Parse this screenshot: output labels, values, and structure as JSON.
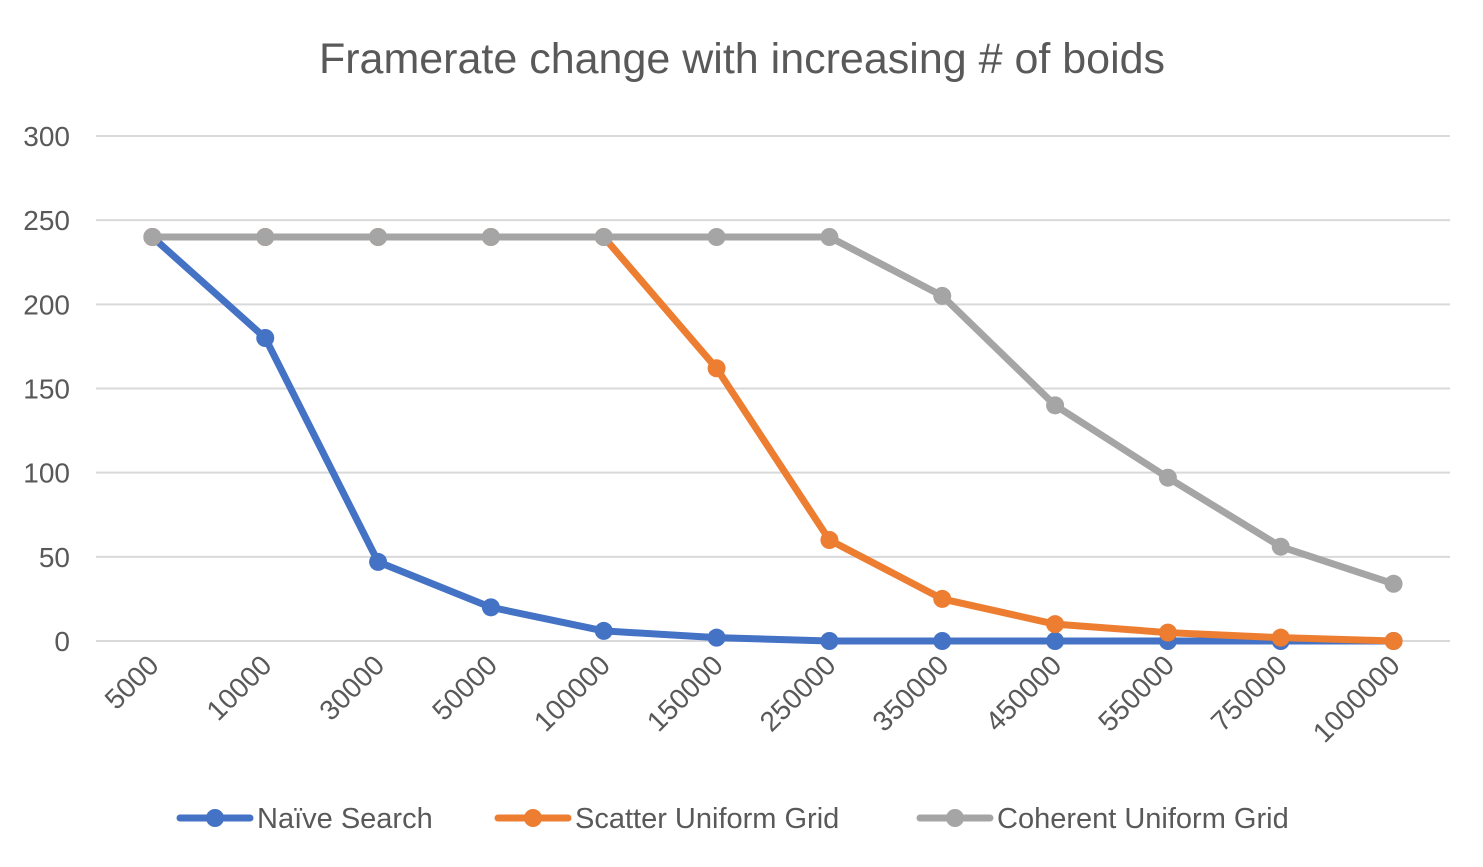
{
  "chart_data": {
    "type": "line",
    "title": "Framerate change with increasing # of boids",
    "xlabel": "",
    "ylabel": "",
    "categories": [
      "5000",
      "10000",
      "30000",
      "50000",
      "100000",
      "150000",
      "250000",
      "350000",
      "450000",
      "550000",
      "750000",
      "1000000"
    ],
    "ylim": [
      0,
      300
    ],
    "yticks": [
      0,
      50,
      100,
      150,
      200,
      250,
      300
    ],
    "grid": true,
    "legend_position": "bottom",
    "series": [
      {
        "name": "Naïve Search",
        "color": "#4472C4",
        "values": [
          240,
          180,
          47,
          20,
          6,
          2,
          0,
          0,
          0,
          0,
          0,
          0
        ]
      },
      {
        "name": "Scatter Uniform Grid",
        "color": "#ED7D31",
        "values": [
          240,
          240,
          240,
          240,
          240,
          162,
          60,
          25,
          10,
          5,
          2,
          0
        ]
      },
      {
        "name": "Coherent Uniform Grid",
        "color": "#A5A5A5",
        "values": [
          240,
          240,
          240,
          240,
          240,
          240,
          240,
          205,
          140,
          97,
          56,
          34
        ]
      }
    ]
  }
}
